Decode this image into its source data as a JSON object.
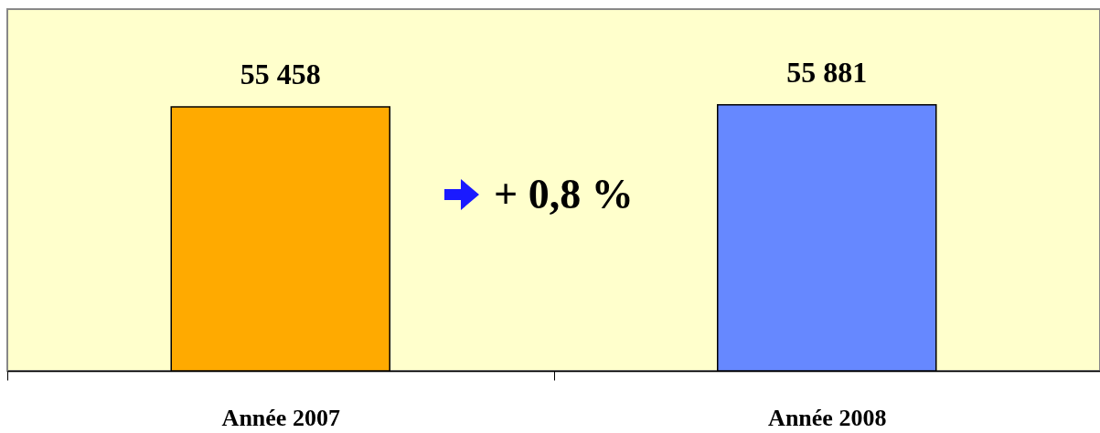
{
  "chart_data": {
    "type": "bar",
    "categories": [
      "Année 2007",
      "Année 2008"
    ],
    "values": [
      55458,
      55881
    ],
    "colors": [
      "#ffaa00",
      "#6688ff"
    ],
    "data_labels": true,
    "value_labels": [
      "55 458",
      "55 881"
    ],
    "annotations": [
      "+ 0,8 %"
    ]
  }
}
